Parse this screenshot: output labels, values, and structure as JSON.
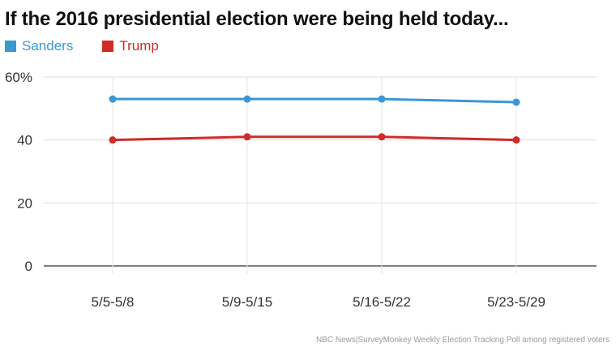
{
  "chart_data": {
    "type": "line",
    "title": "If the 2016 presidential election were being held today...",
    "categories": [
      "5/5-5/8",
      "5/9-5/15",
      "5/16-5/22",
      "5/23-5/29"
    ],
    "series": [
      {
        "name": "Sanders",
        "color": "#3a98d1",
        "values": [
          53,
          53,
          53,
          52
        ]
      },
      {
        "name": "Trump",
        "color": "#d12b27",
        "values": [
          40,
          41,
          41,
          40
        ]
      }
    ],
    "ylim": [
      0,
      60
    ],
    "yticks": [
      {
        "value": 0,
        "label": "0"
      },
      {
        "value": 20,
        "label": "20"
      },
      {
        "value": 40,
        "label": "40"
      },
      {
        "value": 60,
        "label": "60%"
      }
    ],
    "grid": true,
    "legend": "top-left",
    "xlabel": "",
    "ylabel": "",
    "source": "NBC News|SurveyMonkey Weekly Election Tracking Poll among registered voters"
  }
}
